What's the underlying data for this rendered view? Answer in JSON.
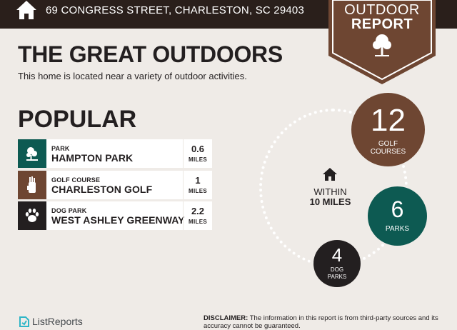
{
  "header": {
    "address": "69 CONGRESS STREET, CHARLESTON, SC 29403",
    "icon": "home-icon",
    "background": "#2a1f1b"
  },
  "badge": {
    "line1": "OUTDOOR",
    "line2": "REPORT",
    "icon": "tree-icon",
    "color": "#6e4632"
  },
  "main": {
    "title": "THE GREAT OUTDOORS",
    "subtitle": "This home is located near a variety of outdoor activities."
  },
  "popular": {
    "heading": "POPULAR",
    "items": [
      {
        "category": "PARK",
        "name": "HAMPTON PARK",
        "distance": "0.6",
        "unit": "MILES",
        "icon": "park-icon",
        "color": "#0d5a52"
      },
      {
        "category": "GOLF COURSE",
        "name": "CHARLESTON GOLF",
        "distance": "1",
        "unit": "MILES",
        "icon": "golf-bag-icon",
        "color": "#6e4632"
      },
      {
        "category": "DOG PARK",
        "name": "WEST ASHLEY GREENWAY",
        "distance": "2.2",
        "unit": "MILES",
        "icon": "paw-icon",
        "color": "#231f20"
      }
    ]
  },
  "summary": {
    "center_icon": "home-icon",
    "within_line1": "WITHIN",
    "within_line2": "10 MILES",
    "bubbles": [
      {
        "count": "12",
        "label_line1": "GOLF",
        "label_line2": "COURSES",
        "color": "#6e4632"
      },
      {
        "count": "6",
        "label_line1": "PARKS",
        "label_line2": "",
        "color": "#0d5a52"
      },
      {
        "count": "4",
        "label_line1": "DOG",
        "label_line2": "PARKS",
        "color": "#231f20"
      }
    ]
  },
  "footer": {
    "logo_text": "ListReports",
    "logo_icon": "listreports-logo-icon",
    "disclaimer_label": "DISCLAIMER:",
    "disclaimer_text": " The information in this report is from third-party sources and its accuracy cannot be guaranteed."
  }
}
